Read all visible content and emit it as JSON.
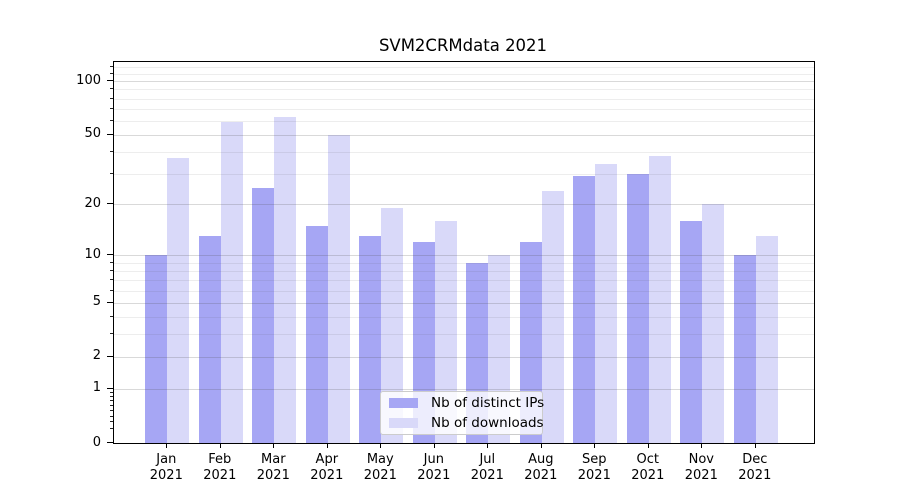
{
  "figure": {
    "title": "SVM2CRMdata 2021"
  },
  "legend": {
    "items": [
      {
        "label": "Nb of distinct IPs",
        "color": "#a6a6f4"
      },
      {
        "label": "Nb of downloads",
        "color": "#d9d9f9"
      }
    ]
  },
  "axes": {
    "ytick_labels": [
      "100",
      "50",
      "20",
      "10",
      "5",
      "2",
      "1",
      "0"
    ],
    "ytick_values": [
      100,
      50,
      20,
      10,
      5,
      2,
      1,
      0
    ],
    "minor_grid_values": [
      120,
      110,
      90,
      80,
      70,
      60,
      40,
      30,
      9,
      8,
      7,
      6,
      4,
      3
    ],
    "minor_tick_only_values": [
      0.9,
      0.8,
      0.7,
      0.6,
      0.5,
      0.4,
      0.3,
      0.2
    ],
    "months": [
      "Jan",
      "Feb",
      "Mar",
      "Apr",
      "May",
      "Jun",
      "Jul",
      "Aug",
      "Sep",
      "Oct",
      "Nov",
      "Dec"
    ],
    "year": "2021"
  },
  "chart_data": {
    "type": "bar",
    "title": "SVM2CRMdata 2021",
    "categories": [
      "Jan 2021",
      "Feb 2021",
      "Mar 2021",
      "Apr 2021",
      "May 2021",
      "Jun 2021",
      "Jul 2021",
      "Aug 2021",
      "Sep 2021",
      "Oct 2021",
      "Nov 2021",
      "Dec 2021"
    ],
    "series": [
      {
        "name": "Nb of distinct IPs",
        "color": "#a6a6f4",
        "values": [
          10,
          13,
          25,
          15,
          13,
          12,
          9,
          12,
          29,
          30,
          16,
          10
        ]
      },
      {
        "name": "Nb of downloads",
        "color": "#d9d9f9",
        "values": [
          37,
          59,
          63,
          50,
          19,
          16,
          10,
          24,
          34,
          38,
          20,
          13
        ]
      }
    ],
    "xlabel": "",
    "ylabel": "",
    "yscale": "log(1+y)",
    "yticks": [
      0,
      1,
      2,
      5,
      10,
      20,
      50,
      100
    ],
    "ylim": [
      0,
      127
    ],
    "grid": "horizontal major+minor, drawn above bars",
    "legend_position": "inside lower center"
  }
}
